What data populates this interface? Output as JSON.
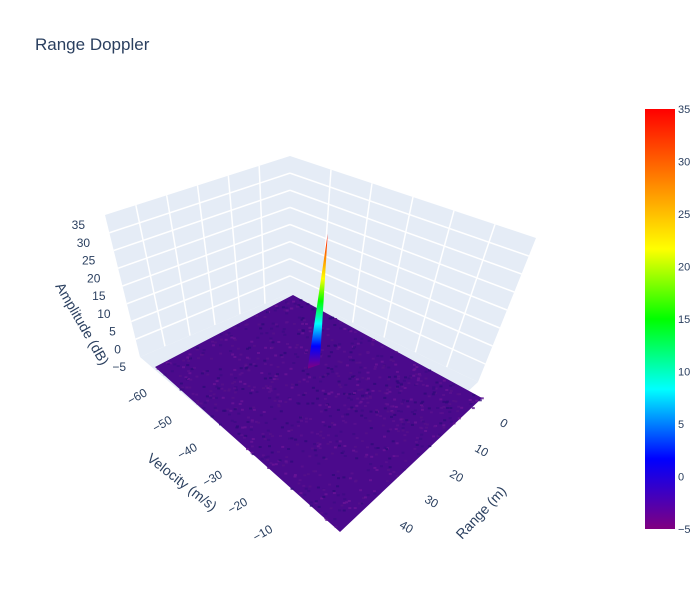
{
  "chart_data": {
    "type": "surface",
    "title": "Range Doppler",
    "x_axis": {
      "label": "Range (m)",
      "range": [
        0,
        45
      ],
      "ticks": [
        0,
        10,
        20,
        30,
        40
      ]
    },
    "y_axis": {
      "label": "Velocity (m/s)",
      "range": [
        -60,
        -5
      ],
      "ticks": [
        -60,
        -50,
        -40,
        -30,
        -20,
        -10
      ]
    },
    "z_axis": {
      "label": "Amplitude (dB)",
      "range": [
        -5,
        35
      ],
      "ticks": [
        -5,
        0,
        5,
        10,
        15,
        20,
        25,
        30,
        35
      ]
    },
    "colorbar": {
      "colorscale": [
        "#800080",
        "#0000ff",
        "#00ffff",
        "#00ff00",
        "#ffff00",
        "#ff8000",
        "#ff0000"
      ],
      "range": [
        -5,
        35
      ],
      "ticks": [
        -5,
        0,
        5,
        10,
        15,
        20,
        25,
        30,
        35
      ]
    },
    "noise_floor_db": -5,
    "peak": {
      "range_m": 17,
      "velocity_mps": -40,
      "amplitude_db": 33
    },
    "grid": true,
    "background_color": "#e5ecf6"
  }
}
